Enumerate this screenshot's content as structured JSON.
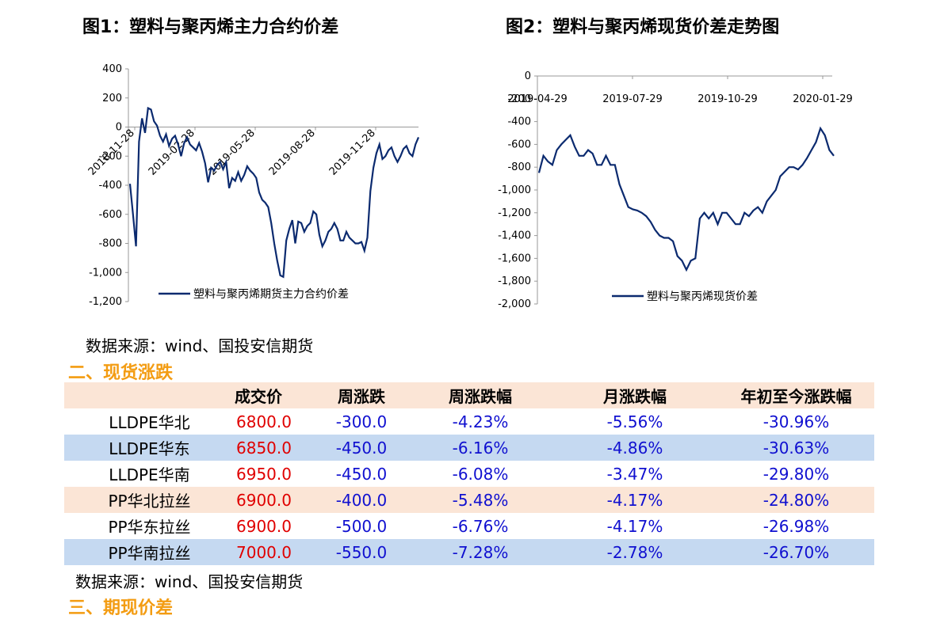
{
  "chart1": {
    "title": "图1：塑料与聚丙烯主力合约价差",
    "chart_data": {
      "type": "line",
      "ylim": [
        -1200,
        400
      ],
      "yticks": [
        "400",
        "200",
        "0",
        "-200",
        "-400",
        "-600",
        "-800",
        "-1,000",
        "-1,200"
      ],
      "xticks": [
        "2018-11-28",
        "2019-02-28",
        "2019-05-28",
        "2019-08-28",
        "2019-11-28"
      ],
      "series": [
        {
          "name": "塑料与聚丙烯期货主力合约价差",
          "color": "#0b2a6f",
          "values": [
            -390,
            -600,
            -820,
            -100,
            60,
            -40,
            130,
            120,
            40,
            10,
            -60,
            -100,
            -50,
            -130,
            -80,
            -60,
            -120,
            -200,
            -110,
            -70,
            -120,
            -140,
            -160,
            -110,
            -170,
            -250,
            -380,
            -280,
            -300,
            -260,
            -240,
            -290,
            -240,
            -420,
            -350,
            -370,
            -310,
            -370,
            -330,
            -270,
            -300,
            -320,
            -350,
            -450,
            -500,
            -520,
            -550,
            -660,
            -800,
            -920,
            -1020,
            -1030,
            -780,
            -700,
            -640,
            -800,
            -650,
            -660,
            -720,
            -680,
            -660,
            -580,
            -600,
            -740,
            -820,
            -780,
            -720,
            -700,
            -660,
            -700,
            -780,
            -780,
            -720,
            -760,
            -780,
            -800,
            -800,
            -790,
            -850,
            -760,
            -440,
            -280,
            -180,
            -120,
            -220,
            -200,
            -160,
            -140,
            -200,
            -240,
            -200,
            -150,
            -130,
            -180,
            -200,
            -120,
            -70
          ]
        }
      ]
    }
  },
  "chart2": {
    "title": "图2：塑料与聚丙烯现货价差走势图",
    "chart_data": {
      "type": "line",
      "ylim": [
        -2000,
        0
      ],
      "yticks": [
        "0",
        "-200",
        "-400",
        "-600",
        "-800",
        "-1,000",
        "-1,200",
        "-1,400",
        "-1,600",
        "-1,800",
        "-2,000"
      ],
      "xticks": [
        "2019-04-29",
        "2019-07-29",
        "2019-10-29",
        "2020-01-29"
      ],
      "series": [
        {
          "name": "塑料与聚丙烯现货价差",
          "color": "#0b2a6f",
          "values": [
            -850,
            -700,
            -750,
            -780,
            -650,
            -600,
            -560,
            -520,
            -620,
            -700,
            -700,
            -650,
            -680,
            -780,
            -780,
            -700,
            -780,
            -780,
            -950,
            -1050,
            -1150,
            -1170,
            -1180,
            -1200,
            -1230,
            -1280,
            -1350,
            -1400,
            -1420,
            -1420,
            -1450,
            -1580,
            -1620,
            -1700,
            -1620,
            -1600,
            -1250,
            -1200,
            -1250,
            -1200,
            -1300,
            -1200,
            -1200,
            -1250,
            -1300,
            -1300,
            -1200,
            -1230,
            -1180,
            -1150,
            -1200,
            -1100,
            -1050,
            -1000,
            -880,
            -840,
            -800,
            -800,
            -820,
            -780,
            -720,
            -650,
            -580,
            -460,
            -520,
            -650,
            -700
          ]
        }
      ]
    }
  },
  "source1": "数据来源：wind、国投安信期货",
  "section2": "二、现货涨跌",
  "table": {
    "headers": [
      "",
      "成交价",
      "周涨跌",
      "周涨跌幅",
      "月涨跌幅",
      "年初至今涨跌幅"
    ],
    "rows": [
      {
        "name": "LLDPE华北",
        "price": "6800.0",
        "week": "-300.0",
        "week_pct": "-4.23%",
        "month_pct": "-5.56%",
        "ytd_pct": "-30.96%"
      },
      {
        "name": "LLDPE华东",
        "price": "6850.0",
        "week": "-450.0",
        "week_pct": "-6.16%",
        "month_pct": "-4.86%",
        "ytd_pct": "-30.63%"
      },
      {
        "name": "LLDPE华南",
        "price": "6950.0",
        "week": "-450.0",
        "week_pct": "-6.08%",
        "month_pct": "-3.47%",
        "ytd_pct": "-29.80%"
      },
      {
        "name": "PP华北拉丝",
        "price": "6900.0",
        "week": "-400.0",
        "week_pct": "-5.48%",
        "month_pct": "-4.17%",
        "ytd_pct": "-24.80%"
      },
      {
        "name": "PP华东拉丝",
        "price": "6900.0",
        "week": "-500.0",
        "week_pct": "-6.76%",
        "month_pct": "-4.17%",
        "ytd_pct": "-26.98%"
      },
      {
        "name": "PP华南拉丝",
        "price": "7000.0",
        "week": "-550.0",
        "week_pct": "-7.28%",
        "month_pct": "-2.78%",
        "ytd_pct": "-26.70%"
      }
    ]
  },
  "source2": "数据来源：wind、国投安信期货",
  "section3": "三、期现价差"
}
